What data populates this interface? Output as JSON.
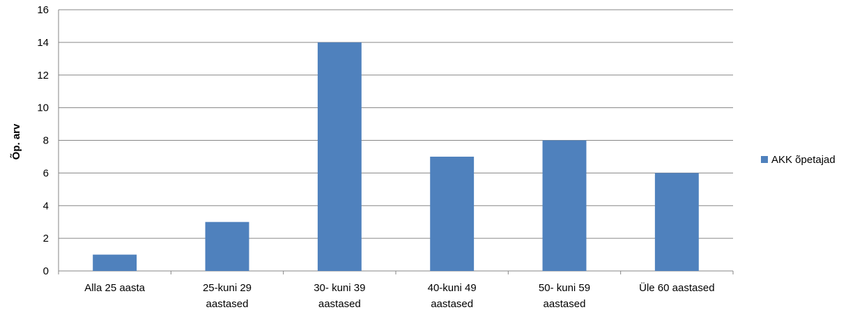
{
  "chart_data": {
    "type": "bar",
    "title": "",
    "xlabel": "",
    "ylabel": "Õp. arv",
    "ylim": [
      0,
      16
    ],
    "yticks": [
      0,
      2,
      4,
      6,
      8,
      10,
      12,
      14,
      16
    ],
    "grid": true,
    "legend_position": "right",
    "categories": [
      [
        "Alla 25 aasta"
      ],
      [
        "25-kuni 29",
        "aastased"
      ],
      [
        "30- kuni 39",
        "aastased"
      ],
      [
        "40-kuni 49",
        "aastased"
      ],
      [
        "50- kuni 59",
        "aastased"
      ],
      [
        "Üle 60 aastased"
      ]
    ],
    "series": [
      {
        "name": "AKK õpetajad",
        "color": "#4F81BD",
        "values": [
          1,
          3,
          14,
          7,
          8,
          6
        ]
      }
    ]
  }
}
